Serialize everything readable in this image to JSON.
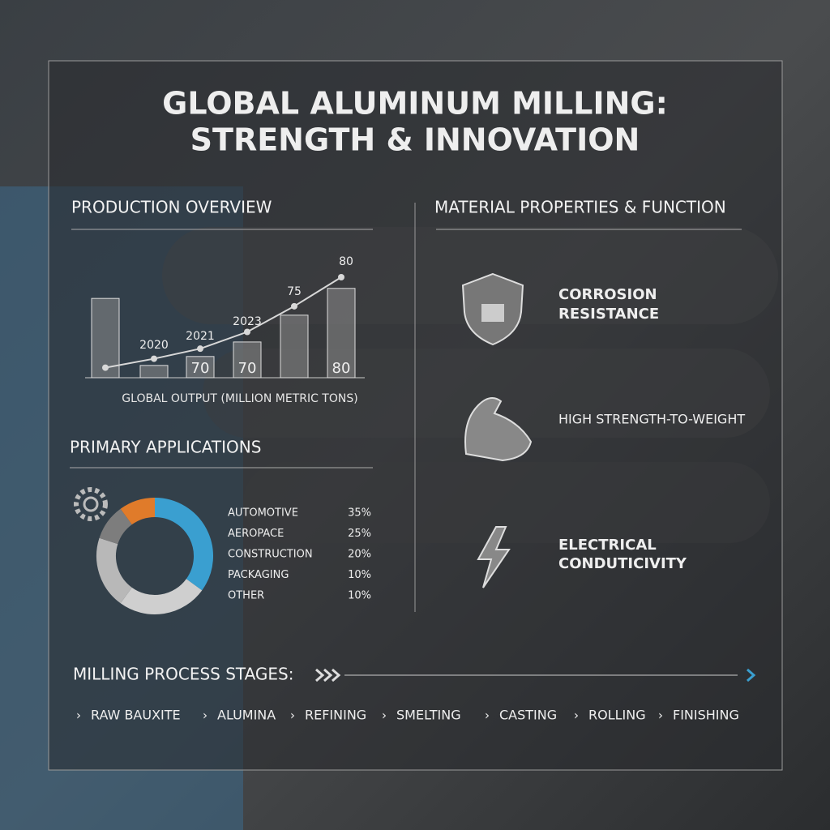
{
  "title": [
    "GLOBAL ALUMINUM MILLING:",
    "STRENGTH & INNOVATION"
  ],
  "chart_data": [
    {
      "type": "bar",
      "title": "PRODUCTION OVERVIEW",
      "x_label": "GLOBAL OUTPUT (MILLION METRIC TONS)",
      "categories": [
        null,
        "2020",
        "2021",
        "2023",
        null,
        null
      ],
      "ylim": [
        0,
        90
      ],
      "series": [
        {
          "type": "bar",
          "color": "#8c8c8c",
          "values": [
            71,
            11,
            19,
            32,
            56,
            80
          ]
        },
        {
          "type": "line",
          "color": "#d8d8d8",
          "values": [
            9,
            17,
            26,
            41,
            64,
            90
          ]
        }
      ],
      "annotations": [
        "70",
        "70",
        "80",
        "75",
        "80"
      ]
    },
    {
      "type": "pie",
      "title": "PRIMARY APPLICATIONS",
      "categories": [
        "AUTOMOTIVE",
        "AEROPACE",
        "CONSTRUCTION",
        "PACKAGING",
        "OTHER"
      ],
      "values": [
        35,
        25,
        20,
        10,
        10
      ],
      "value_labels": [
        "35%",
        "25%",
        "20%",
        "10%",
        "10%"
      ],
      "colors": [
        "#3a9fd0",
        "#cfcfcf",
        "#b8b8b8",
        "#7d7d7d",
        "#e07b2a"
      ]
    }
  ],
  "properties": {
    "title": "MATERIAL PROPERTIES & FUNCTION",
    "items": [
      [
        "CORROSION",
        "RESISTANCE"
      ],
      [
        "HIGH STRENGTH-TO-WEIGHT"
      ],
      [
        "ELECTRICAL",
        "CONDUTICIVITY"
      ]
    ]
  },
  "process": {
    "title": "MILLING PROCESS STAGES:",
    "stages": [
      "RAW BAUXITE",
      "ALUMINA",
      "REFINING",
      "SMELTING",
      "CASTING",
      "ROLLING",
      "FINISHING"
    ]
  }
}
